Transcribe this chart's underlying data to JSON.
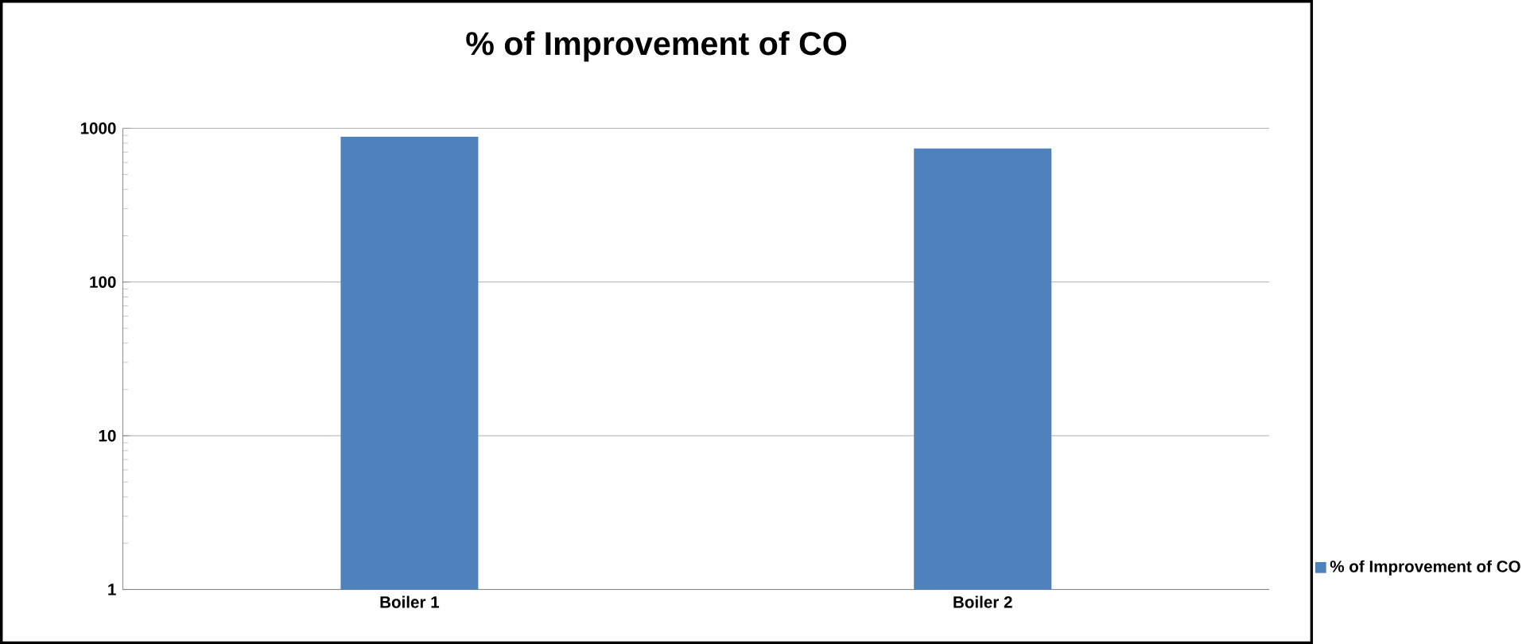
{
  "chart_data": {
    "type": "bar",
    "title": "% of Improvement of CO",
    "categories": [
      "Boiler 1",
      "Boiler 2"
    ],
    "series": [
      {
        "name": "% of Improvement of CO",
        "color": "#4f81bd",
        "values": [
          880,
          740
        ]
      }
    ],
    "log": "y",
    "ylim": [
      1,
      1000
    ],
    "yticks": [
      1,
      10,
      100,
      1000
    ],
    "grid": "y",
    "legend": "right"
  }
}
